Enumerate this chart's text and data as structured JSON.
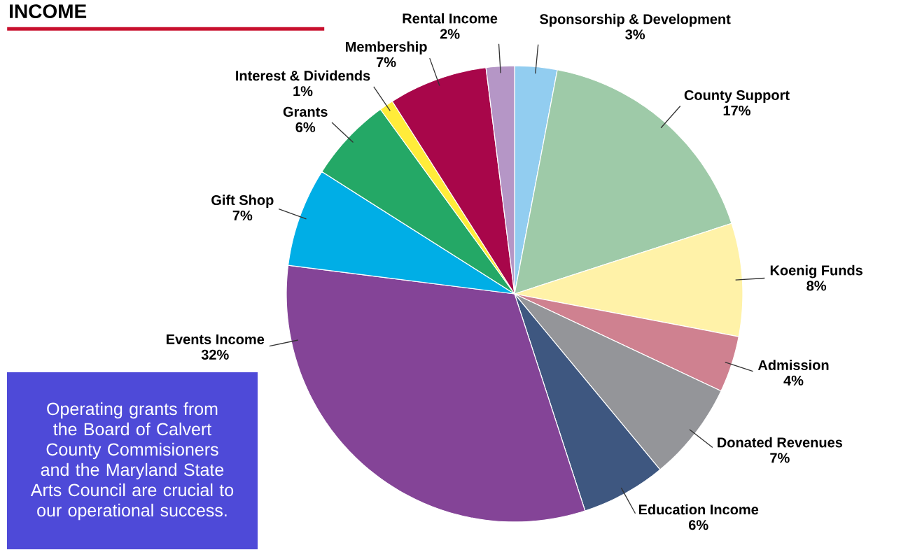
{
  "chart_data": {
    "type": "pie",
    "title": "INCOME",
    "categories": [
      "Sponsorship & Development",
      "County Support",
      "Koenig Funds",
      "Admission",
      "Donated Revenues",
      "Education Income",
      "Events Income",
      "Gift Shop",
      "Grants",
      "Interest & Dividends",
      "Membership",
      "Rental Income"
    ],
    "values": [
      3,
      17,
      8,
      4,
      7,
      6,
      32,
      7,
      6,
      1,
      7,
      2
    ],
    "value_labels": [
      "3%",
      "17%",
      "8%",
      "4%",
      "7%",
      "6%",
      "32%",
      "7%",
      "6%",
      "1%",
      "7%",
      "2%"
    ],
    "colors": [
      "#92cdf0",
      "#9ecaa8",
      "#fff2a8",
      "#cf8190",
      "#949599",
      "#3e5780",
      "#844497",
      "#00aee6",
      "#24a866",
      "#ffec3a",
      "#a8064a",
      "#b596c6"
    ],
    "annotations": [
      "Operating grants from the Board of Calvert County Commisioners and the Maryland State Arts Council are crucial to our operational success."
    ]
  }
}
